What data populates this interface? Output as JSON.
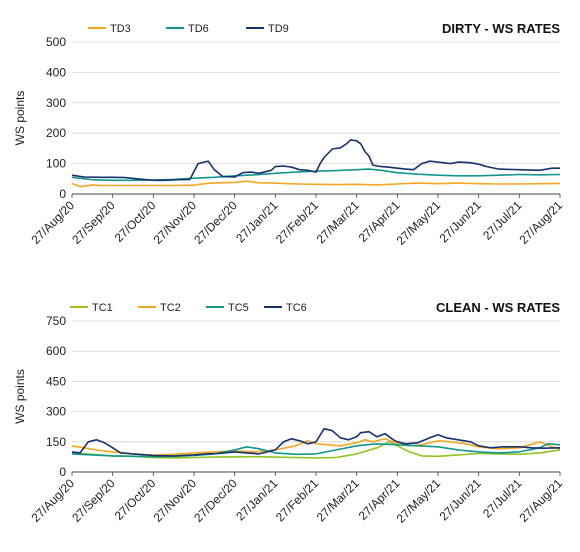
{
  "chart_data": [
    {
      "type": "line",
      "title": "DIRTY - WS RATES",
      "ylabel": "WS points",
      "xlabel": "",
      "ylim": [
        0,
        500
      ],
      "yticks": [
        0,
        100,
        200,
        300,
        400,
        500
      ],
      "legend_position": "top-left",
      "grid": "horizontal",
      "x": [
        "27/Aug/20",
        "27/Sep/20",
        "27/Oct/20",
        "27/Nov/20",
        "27/Dec/20",
        "27/Jan/21",
        "27/Feb/21",
        "27/Mar/21",
        "27/Apr/21",
        "27/May/21",
        "27/Jun/21",
        "27/Jul/21",
        "27/Aug/21"
      ],
      "series": [
        {
          "name": "TD3",
          "color": "#f5a623",
          "values": [
            [
              0,
              35
            ],
            [
              0.2,
              24
            ],
            [
              0.5,
              30
            ],
            [
              0.7,
              28
            ],
            [
              1,
              28
            ],
            [
              1.5,
              28
            ],
            [
              2,
              28
            ],
            [
              2.5,
              28
            ],
            [
              3,
              29
            ],
            [
              3.3,
              35
            ],
            [
              3.6,
              37
            ],
            [
              4,
              38
            ],
            [
              4.3,
              42
            ],
            [
              4.6,
              37
            ],
            [
              5,
              36
            ],
            [
              5.3,
              34
            ],
            [
              5.6,
              33
            ],
            [
              6,
              32
            ],
            [
              6.5,
              31
            ],
            [
              7,
              32
            ],
            [
              7.5,
              30
            ],
            [
              8,
              33
            ],
            [
              8.5,
              36
            ],
            [
              9,
              34
            ],
            [
              9.5,
              36
            ],
            [
              10,
              34
            ],
            [
              10.5,
              33
            ],
            [
              11,
              33
            ],
            [
              11.5,
              34
            ],
            [
              12,
              35
            ]
          ]
        },
        {
          "name": "TD6",
          "color": "#12968d",
          "values": [
            [
              0,
              55
            ],
            [
              0.5,
              47
            ],
            [
              1,
              45
            ],
            [
              1.5,
              45
            ],
            [
              2,
              46
            ],
            [
              2.5,
              48
            ],
            [
              3,
              52
            ],
            [
              3.5,
              55
            ],
            [
              4,
              60
            ],
            [
              4.5,
              63
            ],
            [
              5,
              68
            ],
            [
              5.5,
              72
            ],
            [
              6,
              75
            ],
            [
              6.5,
              77
            ],
            [
              7,
              80
            ],
            [
              7.3,
              82
            ],
            [
              7.6,
              78
            ],
            [
              8,
              70
            ],
            [
              8.5,
              65
            ],
            [
              9,
              62
            ],
            [
              9.5,
              60
            ],
            [
              10,
              60
            ],
            [
              10.5,
              62
            ],
            [
              11,
              64
            ],
            [
              11.5,
              63
            ],
            [
              12,
              64
            ]
          ]
        },
        {
          "name": "TD9",
          "color": "#16326f",
          "values": [
            [
              0,
              62
            ],
            [
              0.3,
              56
            ],
            [
              0.7,
              55
            ],
            [
              1,
              55
            ],
            [
              1.3,
              54
            ],
            [
              1.6,
              50
            ],
            [
              2,
              45
            ],
            [
              2.3,
              45
            ],
            [
              2.6,
              47
            ],
            [
              2.9,
              48
            ],
            [
              3.1,
              100
            ],
            [
              3.25,
              105
            ],
            [
              3.35,
              108
            ],
            [
              3.5,
              80
            ],
            [
              3.7,
              58
            ],
            [
              4,
              56
            ],
            [
              4.2,
              70
            ],
            [
              4.4,
              72
            ],
            [
              4.6,
              68
            ],
            [
              4.9,
              78
            ],
            [
              5,
              90
            ],
            [
              5.2,
              92
            ],
            [
              5.4,
              88
            ],
            [
              5.6,
              80
            ],
            [
              5.8,
              78
            ],
            [
              6,
              72
            ],
            [
              6.1,
              100
            ],
            [
              6.2,
              120
            ],
            [
              6.4,
              148
            ],
            [
              6.6,
              152
            ],
            [
              6.75,
              165
            ],
            [
              6.85,
              178
            ],
            [
              7.0,
              175
            ],
            [
              7.1,
              165
            ],
            [
              7.2,
              140
            ],
            [
              7.3,
              125
            ],
            [
              7.4,
              95
            ],
            [
              7.6,
              90
            ],
            [
              7.8,
              88
            ],
            [
              8,
              85
            ],
            [
              8.2,
              82
            ],
            [
              8.4,
              80
            ],
            [
              8.6,
              100
            ],
            [
              8.8,
              108
            ],
            [
              9,
              105
            ],
            [
              9.3,
              100
            ],
            [
              9.5,
              105
            ],
            [
              9.8,
              103
            ],
            [
              10,
              98
            ],
            [
              10.2,
              90
            ],
            [
              10.5,
              82
            ],
            [
              11,
              80
            ],
            [
              11.5,
              78
            ],
            [
              11.8,
              85
            ],
            [
              12,
              85
            ]
          ]
        }
      ]
    },
    {
      "type": "line",
      "title": "CLEAN - WS RATES",
      "ylabel": "WS points",
      "xlabel": "",
      "ylim": [
        0,
        750
      ],
      "yticks": [
        0,
        150,
        300,
        450,
        600,
        750
      ],
      "legend_position": "top-left",
      "grid": "horizontal",
      "x": [
        "27/Aug/20",
        "27/Sep/20",
        "27/Oct/20",
        "27/Nov/20",
        "27/Dec/20",
        "27/Jan/21",
        "27/Feb/21",
        "27/Mar/21",
        "27/Apr/21",
        "27/May/21",
        "27/Jun/21",
        "27/Jul/21",
        "27/Aug/21"
      ],
      "series": [
        {
          "name": "TC1",
          "color": "#8fc31f",
          "values": [
            [
              0,
              95
            ],
            [
              0.5,
              88
            ],
            [
              1,
              80
            ],
            [
              1.5,
              78
            ],
            [
              2,
              72
            ],
            [
              2.5,
              70
            ],
            [
              3,
              72
            ],
            [
              3.5,
              74
            ],
            [
              4,
              75
            ],
            [
              4.5,
              76
            ],
            [
              5,
              74
            ],
            [
              5.5,
              72
            ],
            [
              6,
              70
            ],
            [
              6.5,
              72
            ],
            [
              7,
              90
            ],
            [
              7.5,
              120
            ],
            [
              7.8,
              150
            ],
            [
              8,
              130
            ],
            [
              8.3,
              100
            ],
            [
              8.6,
              80
            ],
            [
              9,
              78
            ],
            [
              9.5,
              85
            ],
            [
              10,
              92
            ],
            [
              10.5,
              90
            ],
            [
              11,
              88
            ],
            [
              11.5,
              95
            ],
            [
              12,
              110
            ]
          ]
        },
        {
          "name": "TC2",
          "color": "#f5a623",
          "values": [
            [
              0,
              130
            ],
            [
              0.3,
              120
            ],
            [
              0.6,
              110
            ],
            [
              1,
              100
            ],
            [
              1.5,
              90
            ],
            [
              2,
              85
            ],
            [
              2.5,
              88
            ],
            [
              3,
              95
            ],
            [
              3.5,
              100
            ],
            [
              4,
              105
            ],
            [
              4.5,
              100
            ],
            [
              5,
              110
            ],
            [
              5.5,
              130
            ],
            [
              5.8,
              155
            ],
            [
              6,
              140
            ],
            [
              6.3,
              135
            ],
            [
              6.6,
              130
            ],
            [
              7,
              145
            ],
            [
              7.2,
              160
            ],
            [
              7.4,
              150
            ],
            [
              7.7,
              165
            ],
            [
              8,
              140
            ],
            [
              8.3,
              130
            ],
            [
              8.6,
              135
            ],
            [
              9,
              155
            ],
            [
              9.3,
              150
            ],
            [
              9.7,
              140
            ],
            [
              10,
              125
            ],
            [
              10.5,
              115
            ],
            [
              11,
              120
            ],
            [
              11.5,
              150
            ],
            [
              11.8,
              125
            ],
            [
              12,
              115
            ]
          ]
        },
        {
          "name": "TC5",
          "color": "#12968d",
          "values": [
            [
              0,
              90
            ],
            [
              0.5,
              85
            ],
            [
              1,
              80
            ],
            [
              1.5,
              78
            ],
            [
              2,
              76
            ],
            [
              2.5,
              78
            ],
            [
              3,
              82
            ],
            [
              3.5,
              90
            ],
            [
              4,
              110
            ],
            [
              4.3,
              125
            ],
            [
              4.6,
              115
            ],
            [
              5,
              95
            ],
            [
              5.5,
              88
            ],
            [
              6,
              90
            ],
            [
              6.5,
              110
            ],
            [
              7,
              130
            ],
            [
              7.5,
              140
            ],
            [
              8,
              135
            ],
            [
              8.5,
              130
            ],
            [
              9,
              125
            ],
            [
              9.5,
              110
            ],
            [
              10,
              100
            ],
            [
              10.5,
              95
            ],
            [
              11,
              100
            ],
            [
              11.5,
              120
            ],
            [
              11.7,
              140
            ],
            [
              12,
              135
            ]
          ]
        },
        {
          "name": "TC6",
          "color": "#16326f",
          "values": [
            [
              0,
              100
            ],
            [
              0.2,
              95
            ],
            [
              0.4,
              150
            ],
            [
              0.6,
              160
            ],
            [
              0.8,
              145
            ],
            [
              1,
              120
            ],
            [
              1.2,
              95
            ],
            [
              1.5,
              90
            ],
            [
              2,
              82
            ],
            [
              2.5,
              80
            ],
            [
              3,
              85
            ],
            [
              3.3,
              90
            ],
            [
              3.6,
              92
            ],
            [
              4,
              100
            ],
            [
              4.3,
              95
            ],
            [
              4.6,
              90
            ],
            [
              5,
              110
            ],
            [
              5.2,
              150
            ],
            [
              5.4,
              165
            ],
            [
              5.6,
              155
            ],
            [
              5.8,
              140
            ],
            [
              6,
              150
            ],
            [
              6.2,
              215
            ],
            [
              6.4,
              205
            ],
            [
              6.6,
              170
            ],
            [
              6.8,
              160
            ],
            [
              7,
              175
            ],
            [
              7.1,
              195
            ],
            [
              7.3,
              200
            ],
            [
              7.5,
              175
            ],
            [
              7.7,
              190
            ],
            [
              7.9,
              160
            ],
            [
              8,
              150
            ],
            [
              8.2,
              140
            ],
            [
              8.5,
              145
            ],
            [
              8.8,
              170
            ],
            [
              9,
              185
            ],
            [
              9.2,
              170
            ],
            [
              9.5,
              160
            ],
            [
              9.8,
              150
            ],
            [
              10,
              130
            ],
            [
              10.3,
              120
            ],
            [
              10.6,
              125
            ],
            [
              11,
              125
            ],
            [
              11.3,
              120
            ],
            [
              11.6,
              118
            ],
            [
              12,
              120
            ]
          ]
        }
      ]
    }
  ]
}
